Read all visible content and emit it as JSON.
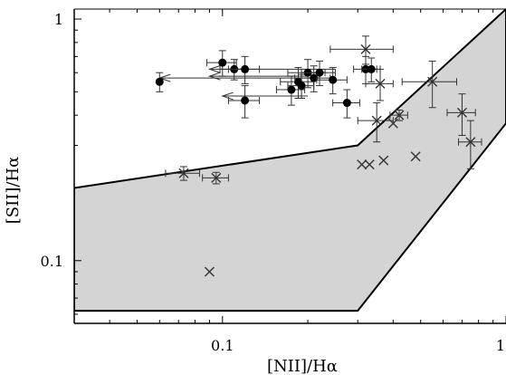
{
  "chart_data": {
    "type": "scatter",
    "x_scale": "log",
    "y_scale": "log",
    "xlim": [
      0.03,
      1.0
    ],
    "ylim": [
      0.055,
      1.1
    ],
    "xlabel": "[NII]/Hα",
    "ylabel": "[SII]/Hα",
    "x_tick_labels": [
      {
        "value": 0.1,
        "label": "0.1"
      },
      {
        "value": 1.0,
        "label": "1"
      }
    ],
    "y_tick_labels": [
      {
        "value": 0.1,
        "label": "0.1"
      },
      {
        "value": 1.0,
        "label": "1"
      }
    ],
    "region": {
      "description": "shaded",
      "color": "#d4d4d4",
      "polygon": [
        [
          0.03,
          0.2
        ],
        [
          0.3,
          0.3
        ],
        [
          1.0,
          1.1
        ],
        [
          1.0,
          0.37
        ],
        [
          0.3,
          0.062
        ],
        [
          0.03,
          0.062
        ]
      ]
    },
    "series": [
      {
        "marker": "filled-circle",
        "points": [
          {
            "x": 0.06,
            "y": 0.55,
            "xerr": 0,
            "yerr": 0.05
          },
          {
            "x": 0.1,
            "y": 0.66,
            "xerr": 0.012,
            "yerr": 0.08
          },
          {
            "x": 0.11,
            "y": 0.62,
            "xerr": 0.012,
            "yerr": 0.06
          },
          {
            "x": 0.12,
            "y": 0.62,
            "xerr": 0.015,
            "yerr": 0.08
          },
          {
            "x": 0.12,
            "y": 0.46,
            "xerr": 0.015,
            "yerr": 0.07
          },
          {
            "x": 0.175,
            "y": 0.51,
            "xerr": 0.02,
            "yerr": 0.07
          },
          {
            "x": 0.185,
            "y": 0.55,
            "xerr": 0.025,
            "yerr": 0.08
          },
          {
            "x": 0.19,
            "y": 0.53,
            "xerr": 0.02,
            "yerr": 0.06
          },
          {
            "x": 0.2,
            "y": 0.6,
            "xerr": 0.03,
            "yerr": 0.08
          },
          {
            "x": 0.21,
            "y": 0.57,
            "xerr": 0.03,
            "yerr": 0.07
          },
          {
            "x": 0.22,
            "y": 0.6,
            "xerr": 0.03,
            "yerr": 0.07
          },
          {
            "x": 0.245,
            "y": 0.56,
            "xerr": 0.03,
            "yerr": 0.07
          },
          {
            "x": 0.275,
            "y": 0.45,
            "xerr": 0.03,
            "yerr": 0.06
          },
          {
            "x": 0.32,
            "y": 0.62,
            "xerr": 0.03,
            "yerr": 0.08
          },
          {
            "x": 0.335,
            "y": 0.62,
            "xerr": 0.025,
            "yerr": 0.07
          }
        ]
      },
      {
        "marker": "cross",
        "points": [
          {
            "x": 0.32,
            "y": 0.75,
            "xerr": 0.08,
            "yerr": 0.1
          },
          {
            "x": 0.35,
            "y": 0.38,
            "xerr": 0.05,
            "yerr": 0.07
          },
          {
            "x": 0.36,
            "y": 0.54,
            "xerr": 0.04,
            "yerr": 0.08
          },
          {
            "x": 0.42,
            "y": 0.4,
            "xerr": 0.03,
            "yerr": 0.02
          },
          {
            "x": 0.55,
            "y": 0.55,
            "xerr": 0.12,
            "yerr": 0.12
          },
          {
            "x": 0.7,
            "y": 0.41,
            "xerr": 0.08,
            "yerr": 0.08
          },
          {
            "x": 0.75,
            "y": 0.31,
            "xerr": 0.07,
            "yerr": 0.07
          },
          {
            "x": 0.073,
            "y": 0.23,
            "xerr": 0.01,
            "yerr": 0.015
          },
          {
            "x": 0.095,
            "y": 0.22,
            "xerr": 0.01,
            "yerr": 0.012
          },
          {
            "x": 0.09,
            "y": 0.09,
            "xerr": 0,
            "yerr": 0
          },
          {
            "x": 0.31,
            "y": 0.25,
            "xerr": 0,
            "yerr": 0
          },
          {
            "x": 0.33,
            "y": 0.25,
            "xerr": 0,
            "yerr": 0
          },
          {
            "x": 0.37,
            "y": 0.26,
            "xerr": 0,
            "yerr": 0
          },
          {
            "x": 0.4,
            "y": 0.37,
            "xerr": 0,
            "yerr": 0
          },
          {
            "x": 0.48,
            "y": 0.27,
            "xerr": 0,
            "yerr": 0
          }
        ]
      }
    ],
    "upper_limits": [
      {
        "x": 0.06,
        "y": 0.57,
        "from_x": 0.22
      },
      {
        "x": 0.09,
        "y": 0.58,
        "from_x": 0.2
      },
      {
        "x": 0.09,
        "y": 0.62,
        "from_x": 0.25
      },
      {
        "x": 0.1,
        "y": 0.48,
        "from_x": 0.2
      }
    ]
  }
}
